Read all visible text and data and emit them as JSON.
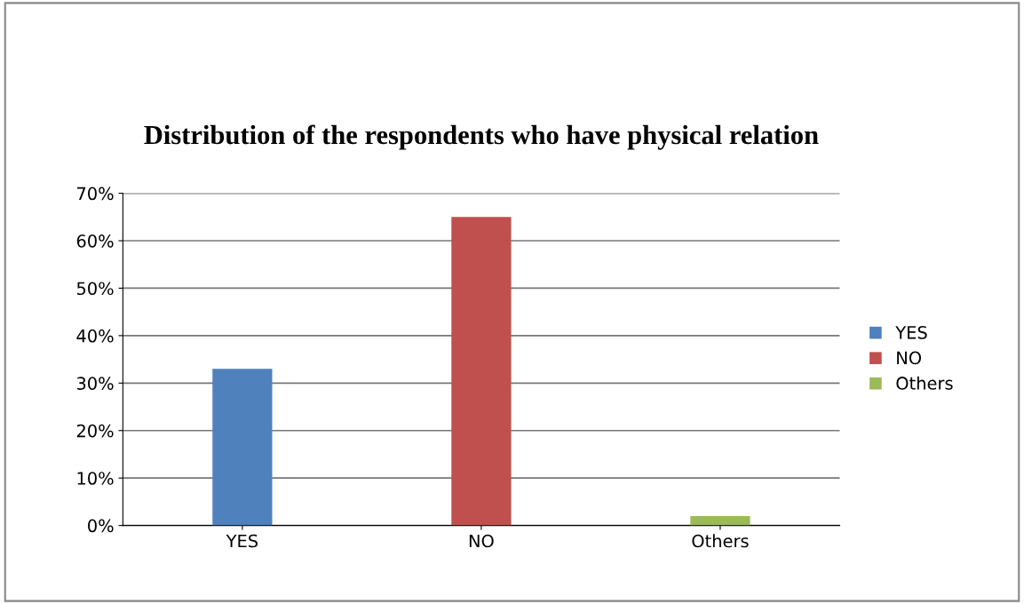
{
  "chart_data": {
    "type": "bar",
    "title": "Distribution of the respondents who have physical relation",
    "categories": [
      "YES",
      "NO",
      "Others"
    ],
    "series": [
      {
        "name": "YES",
        "color": "#4f81bd",
        "values": [
          33,
          null,
          null
        ]
      },
      {
        "name": "NO",
        "color": "#c0504d",
        "values": [
          null,
          65,
          null
        ]
      },
      {
        "name": "Others",
        "color": "#9bbb59",
        "values": [
          null,
          null,
          2
        ]
      }
    ],
    "ylim": [
      0,
      70
    ],
    "yticks": [
      {
        "value": 0,
        "label": "0%"
      },
      {
        "value": 10,
        "label": "10%"
      },
      {
        "value": 20,
        "label": "20%"
      },
      {
        "value": 30,
        "label": "30%"
      },
      {
        "value": 40,
        "label": "40%"
      },
      {
        "value": 50,
        "label": "50%"
      },
      {
        "value": 60,
        "label": "60%"
      },
      {
        "value": 70,
        "label": "70%"
      }
    ],
    "grid": "y",
    "legend": "right"
  }
}
